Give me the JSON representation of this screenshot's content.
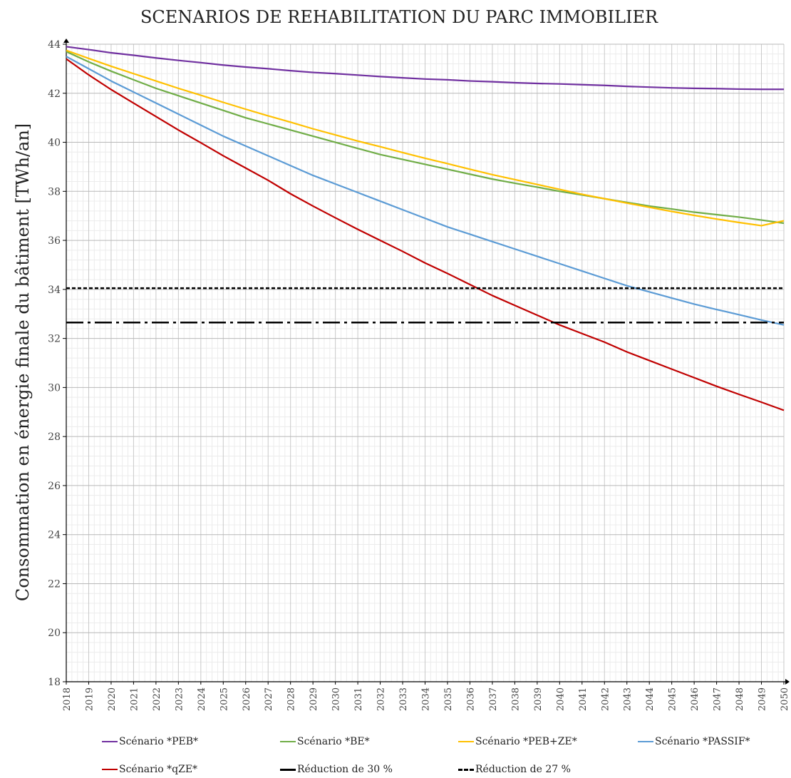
{
  "chart_data": {
    "type": "line",
    "title": "SCENARIOS DE REHABILITATION DU PARC IMMOBILIER",
    "xlabel": "",
    "ylabel": "Consommation en énergie finale du bâtiment [TWh/an]",
    "x": [
      "2018",
      "2019",
      "2020",
      "2021",
      "2022",
      "2023",
      "2024",
      "2025",
      "2026",
      "2027",
      "2028",
      "2029",
      "2030",
      "2031",
      "2032",
      "2033",
      "2034",
      "2035",
      "2036",
      "2037",
      "2038",
      "2039",
      "2040",
      "2041",
      "2042",
      "2043",
      "2044",
      "2045",
      "2046",
      "2047",
      "2048",
      "2049",
      "2050"
    ],
    "ylim": [
      18,
      44
    ],
    "yticks": [
      18,
      20,
      22,
      24,
      26,
      28,
      30,
      32,
      34,
      36,
      38,
      40,
      42,
      44
    ],
    "grid": true,
    "legend_position": "bottom",
    "series": [
      {
        "name": "Scénario *PEB*",
        "color": "#7030A0",
        "style": "solid",
        "values": [
          43.9,
          43.78,
          43.65,
          43.55,
          43.44,
          43.34,
          43.25,
          43.15,
          43.07,
          43.0,
          42.92,
          42.85,
          42.8,
          42.74,
          42.68,
          42.63,
          42.58,
          42.55,
          42.5,
          42.47,
          42.43,
          42.4,
          42.38,
          42.35,
          42.32,
          42.28,
          42.25,
          42.22,
          42.2,
          42.19,
          42.17,
          42.16,
          42.16
        ]
      },
      {
        "name": "Scénario *BE*",
        "color": "#70AD47",
        "style": "solid",
        "values": [
          43.7,
          43.28,
          42.9,
          42.55,
          42.2,
          41.9,
          41.6,
          41.3,
          41.0,
          40.75,
          40.5,
          40.25,
          40.0,
          39.75,
          39.5,
          39.3,
          39.1,
          38.9,
          38.7,
          38.5,
          38.33,
          38.17,
          38.0,
          37.85,
          37.7,
          37.55,
          37.4,
          37.28,
          37.15,
          37.05,
          36.95,
          36.83,
          36.7
        ]
      },
      {
        "name": "Scénario *PEB+ZE*",
        "color": "#FFC000",
        "style": "solid",
        "values": [
          43.75,
          43.42,
          43.1,
          42.8,
          42.5,
          42.2,
          41.92,
          41.63,
          41.35,
          41.08,
          40.82,
          40.55,
          40.3,
          40.05,
          39.82,
          39.58,
          39.35,
          39.13,
          38.9,
          38.68,
          38.48,
          38.28,
          38.08,
          37.88,
          37.7,
          37.52,
          37.35,
          37.18,
          37.02,
          36.87,
          36.73,
          36.6,
          36.8
        ]
      },
      {
        "name": "Scénario *PASSIF*",
        "color": "#5B9BD5",
        "style": "solid",
        "values": [
          43.5,
          43.0,
          42.5,
          42.05,
          41.6,
          41.15,
          40.7,
          40.25,
          39.85,
          39.45,
          39.05,
          38.65,
          38.3,
          37.95,
          37.6,
          37.25,
          36.9,
          36.55,
          36.25,
          35.95,
          35.65,
          35.35,
          35.05,
          34.75,
          34.45,
          34.15,
          33.9,
          33.65,
          33.4,
          33.18,
          32.97,
          32.75,
          32.55
        ]
      },
      {
        "name": "Scénario *qZE*",
        "color": "#C00000",
        "style": "solid",
        "values": [
          43.4,
          42.75,
          42.15,
          41.6,
          41.05,
          40.5,
          39.98,
          39.45,
          38.95,
          38.45,
          37.9,
          37.4,
          36.92,
          36.45,
          36.0,
          35.55,
          35.08,
          34.65,
          34.2,
          33.75,
          33.35,
          32.95,
          32.55,
          32.2,
          31.85,
          31.45,
          31.1,
          30.75,
          30.4,
          30.05,
          29.72,
          29.4,
          29.07
        ]
      },
      {
        "name": "Réduction de 30 %",
        "color": "#000000",
        "style": "dashdot",
        "constant": 32.65
      },
      {
        "name": "Réduction de 27 %",
        "color": "#000000",
        "style": "dotted",
        "constant": 34.05
      }
    ]
  }
}
